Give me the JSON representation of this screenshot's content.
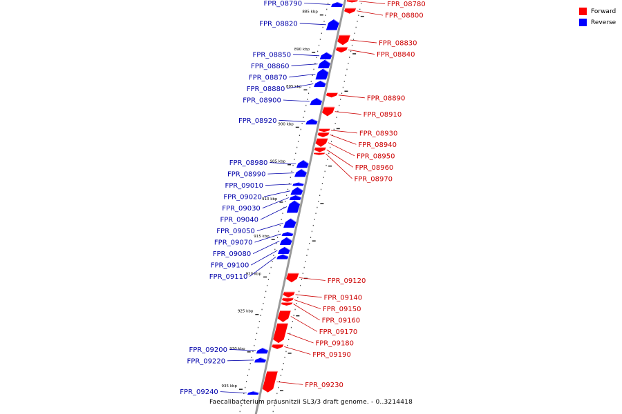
{
  "diagram": {
    "caption": "Faecalibacterium prausnitzii SL3/3 draft genome. - 0..3214418",
    "legend": [
      {
        "label": "Forward",
        "color": "#ff0000"
      },
      {
        "label": "Reverse",
        "color": "#0000ff"
      }
    ],
    "colors": {
      "forward": "#ff0000",
      "reverse": "#0000ff",
      "label_forward": "#cc0000",
      "label_reverse": "#0000aa",
      "axis": "#999999"
    },
    "axis_range_kbp": [
      883,
      936
    ],
    "kbp_ticks": [
      {
        "kbp": 885,
        "label": "885 kbp"
      },
      {
        "kbp": 890,
        "label": "890 kbp"
      },
      {
        "kbp": 895,
        "label": "895 kbp"
      },
      {
        "kbp": 900,
        "label": "900 kbp"
      },
      {
        "kbp": 905,
        "label": "905 kbp"
      },
      {
        "kbp": 910,
        "label": "910 kbp"
      },
      {
        "kbp": 915,
        "label": "915 kbp"
      },
      {
        "kbp": 920,
        "label": "920 kbp"
      },
      {
        "kbp": 925,
        "label": "925 kbp"
      },
      {
        "kbp": 930,
        "label": "930 kbp"
      },
      {
        "kbp": 935,
        "label": "935 kbp"
      }
    ],
    "genes": [
      {
        "id": "FPR_08780",
        "strand": "forward",
        "start_kbp": 883.0,
        "end_kbp": 883.3
      },
      {
        "id": "FPR_08790",
        "strand": "reverse",
        "start_kbp": 883.3,
        "end_kbp": 883.9
      },
      {
        "id": "FPR_08800",
        "strand": "forward",
        "start_kbp": 884.1,
        "end_kbp": 884.8
      },
      {
        "id": "FPR_08820",
        "strand": "reverse",
        "start_kbp": 885.6,
        "end_kbp": 887.0
      },
      {
        "id": "FPR_08830",
        "strand": "forward",
        "start_kbp": 887.7,
        "end_kbp": 889.0
      },
      {
        "id": "FPR_08840",
        "strand": "forward",
        "start_kbp": 889.3,
        "end_kbp": 890.0
      },
      {
        "id": "FPR_08850",
        "strand": "reverse",
        "start_kbp": 890.0,
        "end_kbp": 890.9
      },
      {
        "id": "FPR_08860",
        "strand": "reverse",
        "start_kbp": 891.0,
        "end_kbp": 892.1
      },
      {
        "id": "FPR_08870",
        "strand": "reverse",
        "start_kbp": 892.2,
        "end_kbp": 893.6
      },
      {
        "id": "FPR_08880",
        "strand": "reverse",
        "start_kbp": 893.8,
        "end_kbp": 894.6
      },
      {
        "id": "FPR_08890",
        "strand": "forward",
        "start_kbp": 895.4,
        "end_kbp": 896.0
      },
      {
        "id": "FPR_08900",
        "strand": "reverse",
        "start_kbp": 896.1,
        "end_kbp": 897.0
      },
      {
        "id": "FPR_08910",
        "strand": "forward",
        "start_kbp": 897.3,
        "end_kbp": 898.5
      },
      {
        "id": "FPR_08920",
        "strand": "reverse",
        "start_kbp": 898.9,
        "end_kbp": 899.6
      },
      {
        "id": "FPR_08930",
        "strand": "forward",
        "start_kbp": 900.2,
        "end_kbp": 900.6
      },
      {
        "id": "FPR_08940",
        "strand": "forward",
        "start_kbp": 900.7,
        "end_kbp": 901.3
      },
      {
        "id": "FPR_08950",
        "strand": "forward",
        "start_kbp": 901.5,
        "end_kbp": 902.6
      },
      {
        "id": "FPR_08960",
        "strand": "forward",
        "start_kbp": 902.7,
        "end_kbp": 903.3
      },
      {
        "id": "FPR_08970",
        "strand": "forward",
        "start_kbp": 903.4,
        "end_kbp": 903.6
      },
      {
        "id": "FPR_08980",
        "strand": "reverse",
        "start_kbp": 904.4,
        "end_kbp": 905.4
      },
      {
        "id": "FPR_08990",
        "strand": "reverse",
        "start_kbp": 905.6,
        "end_kbp": 906.6
      },
      {
        "id": "FPR_09010",
        "strand": "reverse",
        "start_kbp": 907.4,
        "end_kbp": 907.8
      },
      {
        "id": "FPR_09020",
        "strand": "reverse",
        "start_kbp": 908.0,
        "end_kbp": 909.0
      },
      {
        "id": "FPR_09030",
        "strand": "reverse",
        "start_kbp": 909.1,
        "end_kbp": 909.7
      },
      {
        "id": "FPR_09040",
        "strand": "reverse",
        "start_kbp": 909.8,
        "end_kbp": 911.4
      },
      {
        "id": "FPR_09050",
        "strand": "reverse",
        "start_kbp": 912.2,
        "end_kbp": 913.4
      },
      {
        "id": "FPR_09070",
        "strand": "reverse",
        "start_kbp": 914.0,
        "end_kbp": 914.5
      },
      {
        "id": "FPR_09080",
        "strand": "reverse",
        "start_kbp": 914.7,
        "end_kbp": 915.7
      },
      {
        "id": "FPR_09100",
        "strand": "reverse",
        "start_kbp": 916.0,
        "end_kbp": 916.9
      },
      {
        "id": "FPR_09110",
        "strand": "reverse",
        "start_kbp": 917.0,
        "end_kbp": 917.6
      },
      {
        "id": "FPR_09120",
        "strand": "forward",
        "start_kbp": 919.5,
        "end_kbp": 920.7
      },
      {
        "id": "FPR_09140",
        "strand": "forward",
        "start_kbp": 922.0,
        "end_kbp": 922.7
      },
      {
        "id": "FPR_09150",
        "strand": "forward",
        "start_kbp": 922.8,
        "end_kbp": 923.3
      },
      {
        "id": "FPR_09160",
        "strand": "forward",
        "start_kbp": 923.4,
        "end_kbp": 923.8
      },
      {
        "id": "FPR_09170",
        "strand": "forward",
        "start_kbp": 924.5,
        "end_kbp": 926.0
      },
      {
        "id": "FPR_09180",
        "strand": "forward",
        "start_kbp": 926.2,
        "end_kbp": 928.8
      },
      {
        "id": "FPR_09190",
        "strand": "forward",
        "start_kbp": 929.0,
        "end_kbp": 929.6
      },
      {
        "id": "FPR_09200",
        "strand": "reverse",
        "start_kbp": 929.5,
        "end_kbp": 930.2
      },
      {
        "id": "FPR_09220",
        "strand": "reverse",
        "start_kbp": 930.8,
        "end_kbp": 931.4
      },
      {
        "id": "FPR_09230",
        "strand": "forward",
        "start_kbp": 932.6,
        "end_kbp": 935.4
      },
      {
        "id": "FPR_09240",
        "strand": "reverse",
        "start_kbp": 935.3,
        "end_kbp": 935.7
      }
    ]
  }
}
